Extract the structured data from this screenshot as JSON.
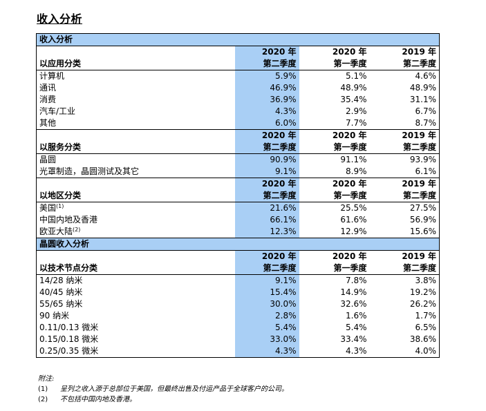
{
  "title": "收入分析",
  "section_revenue": "收入分析",
  "section_wafer": "晶圆收入分析",
  "col_headers": [
    {
      "year": "2020 年",
      "quarter": "第二季度"
    },
    {
      "year": "2020 年",
      "quarter": "第一季度"
    },
    {
      "year": "2019 年",
      "quarter": "第二季度"
    }
  ],
  "groups": [
    {
      "label": "以应用分类",
      "rows": [
        {
          "name": "计算机",
          "sup": "",
          "v": [
            "5.9%",
            "5.1%",
            "4.6%"
          ]
        },
        {
          "name": "通讯",
          "sup": "",
          "v": [
            "46.9%",
            "48.9%",
            "48.9%"
          ]
        },
        {
          "name": "消费",
          "sup": "",
          "v": [
            "36.9%",
            "35.4%",
            "31.1%"
          ]
        },
        {
          "name": "汽车/工业",
          "sup": "",
          "v": [
            "4.3%",
            "2.9%",
            "6.7%"
          ]
        },
        {
          "name": "其他",
          "sup": "",
          "v": [
            "6.0%",
            "7.7%",
            "8.7%"
          ]
        }
      ]
    },
    {
      "label": "以服务分类",
      "rows": [
        {
          "name": "晶圆",
          "sup": "",
          "v": [
            "90.9%",
            "91.1%",
            "93.9%"
          ]
        },
        {
          "name": "光罩制造，晶圆测试及其它",
          "sup": "",
          "v": [
            "9.1%",
            "8.9%",
            "6.1%"
          ]
        }
      ]
    },
    {
      "label": "以地区分类",
      "rows": [
        {
          "name": "美国",
          "sup": "(1)",
          "v": [
            "21.6%",
            "25.5%",
            "27.5%"
          ]
        },
        {
          "name": "中国内地及香港",
          "sup": "",
          "v": [
            "66.1%",
            "61.6%",
            "56.9%"
          ]
        },
        {
          "name": "欧亚大陆",
          "sup": "(2)",
          "v": [
            "12.3%",
            "12.9%",
            "15.6%"
          ]
        }
      ]
    },
    {
      "label": "以技术节点分类",
      "rows": [
        {
          "name": "14/28 纳米",
          "sup": "",
          "v": [
            "9.1%",
            "7.8%",
            "3.8%"
          ]
        },
        {
          "name": "40/45 纳米",
          "sup": "",
          "v": [
            "15.4%",
            "14.9%",
            "19.2%"
          ]
        },
        {
          "name": "55/65 纳米",
          "sup": "",
          "v": [
            "30.0%",
            "32.6%",
            "26.2%"
          ]
        },
        {
          "name": "90 纳米",
          "sup": "",
          "v": [
            "2.8%",
            "1.6%",
            "1.7%"
          ]
        },
        {
          "name": "0.11/0.13 微米",
          "sup": "",
          "v": [
            "5.4%",
            "5.4%",
            "6.5%"
          ]
        },
        {
          "name": "0.15/0.18 微米",
          "sup": "",
          "v": [
            "33.0%",
            "33.4%",
            "38.6%"
          ]
        },
        {
          "name": "0.25/0.35 微米",
          "sup": "",
          "v": [
            "4.3%",
            "4.3%",
            "4.0%"
          ]
        }
      ]
    }
  ],
  "notes": {
    "heading": "附注:",
    "items": [
      {
        "key": "(1)",
        "text": "呈列之收入源于总部位于美国，但最终出售及付运产品于全球客户的公司。"
      },
      {
        "key": "(2)",
        "text": "不包括中国内地及香港。"
      }
    ]
  }
}
